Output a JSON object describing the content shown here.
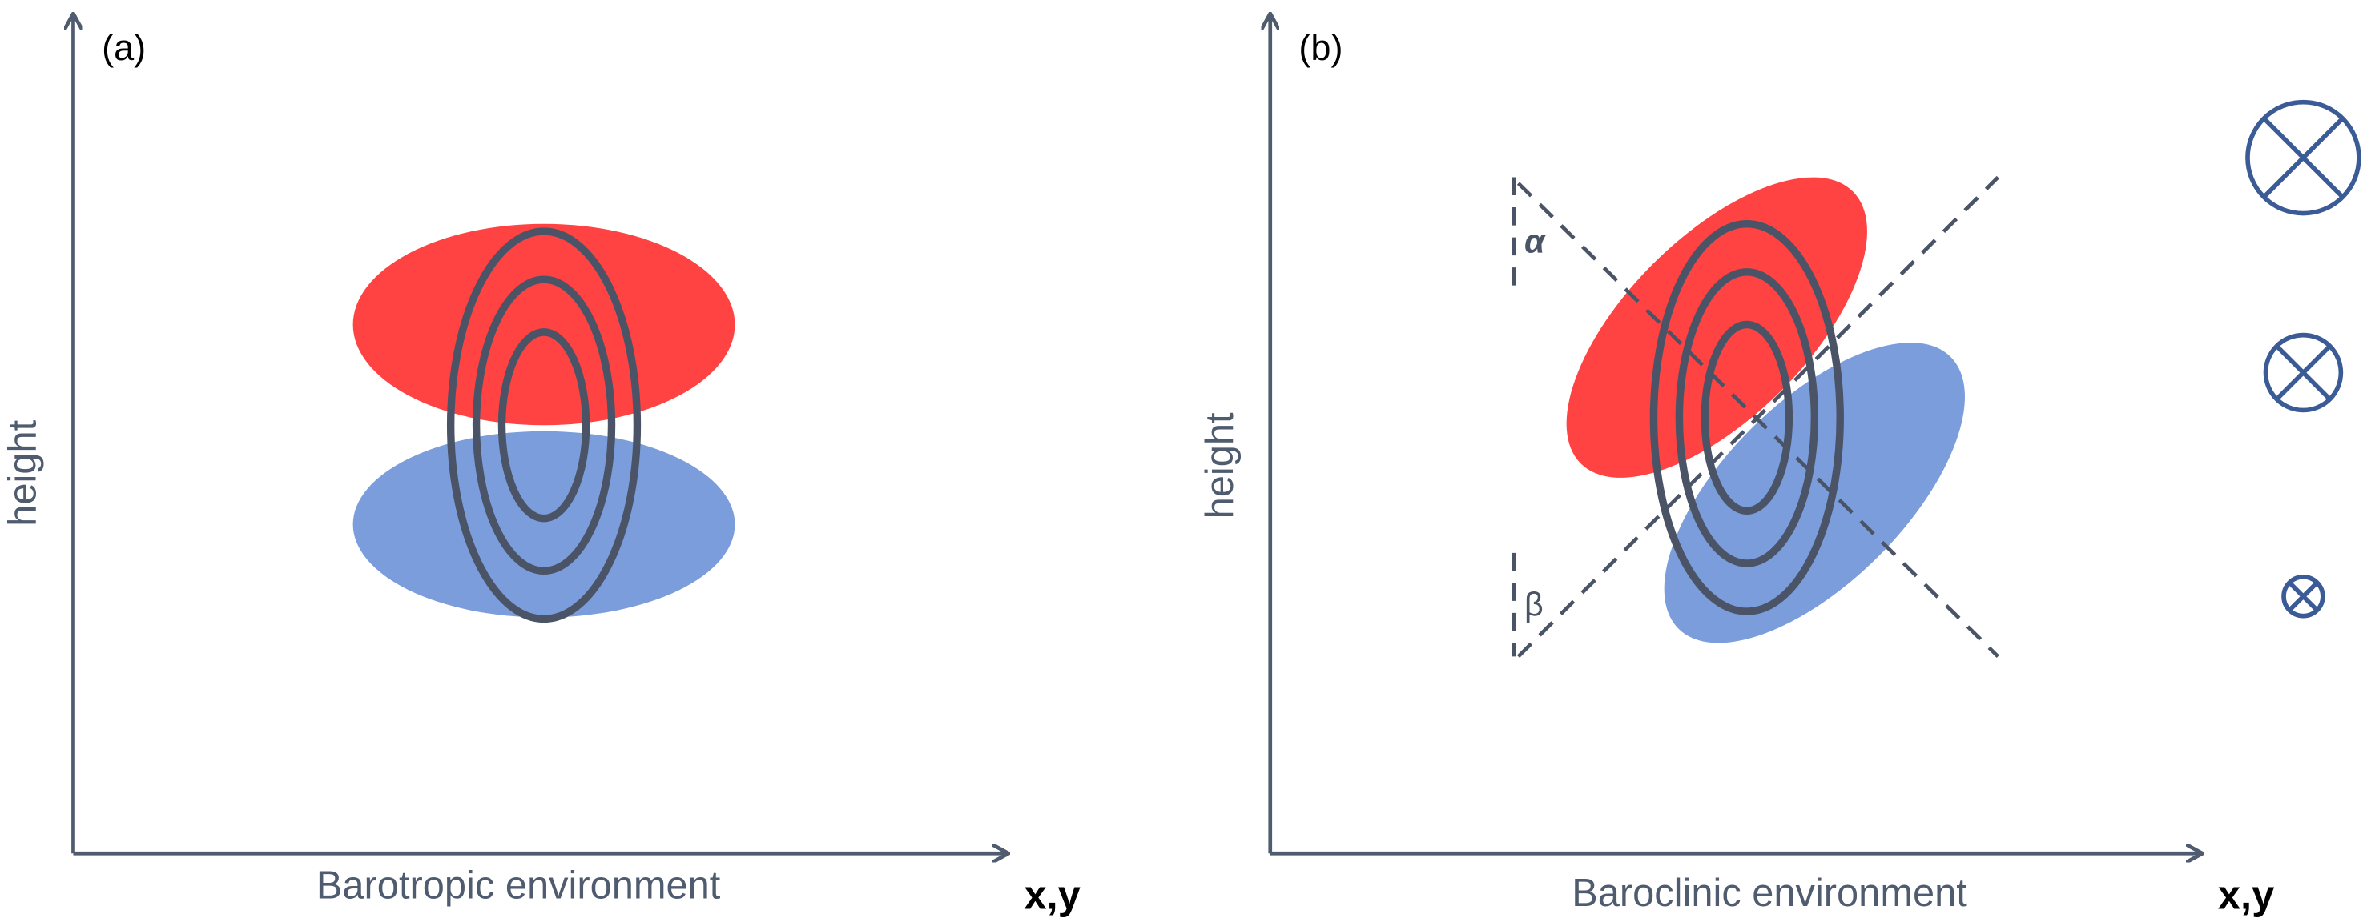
{
  "panels": [
    {
      "label": "(a)",
      "y_axis": "height",
      "x_axis": "x,y",
      "caption": "Barotropic environment"
    },
    {
      "label": "(b)",
      "y_axis": "height",
      "x_axis": "x,y",
      "caption": "Baroclinic environment",
      "angle_top": "α",
      "angle_bottom": "β"
    }
  ]
}
